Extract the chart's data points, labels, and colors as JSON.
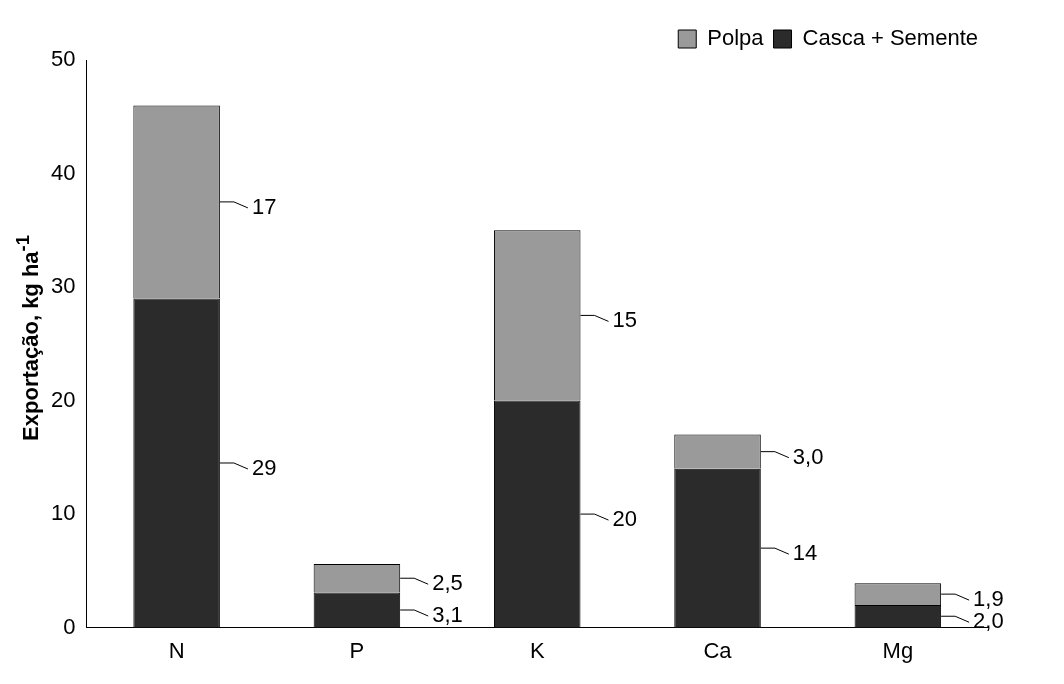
{
  "chart_data": {
    "type": "bar",
    "stacked": true,
    "ylabel": "Exportação, kg ha$^{-1}$",
    "categories": [
      "N",
      "P",
      "K",
      "Ca",
      "Mg"
    ],
    "series": [
      {
        "name": "Casca + Semente",
        "color": "#2b2b2b",
        "values": [
          29,
          3.1,
          20,
          14,
          2.0
        ],
        "value_labels": [
          "29",
          "3,1",
          "20",
          "14",
          "2,0"
        ]
      },
      {
        "name": "Polpa",
        "color": "#9a9a9a",
        "values": [
          17,
          2.5,
          15,
          3.0,
          1.9
        ],
        "value_labels": [
          "17",
          "2,5",
          "15",
          "3,0",
          "1,9"
        ]
      }
    ],
    "ylim": [
      0,
      50
    ],
    "yticks": [
      0,
      10,
      20,
      30,
      40,
      50
    ],
    "grid": false,
    "legend": "top right"
  }
}
